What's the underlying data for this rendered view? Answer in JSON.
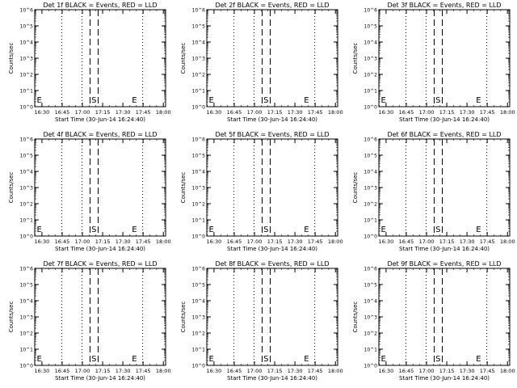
{
  "figure": {
    "background": "#ffffff",
    "foreground": "#000000"
  },
  "chart_data": [
    {
      "type": "line",
      "title": "Det 1f BLACK = Events, RED = LLD",
      "xlabel": "Start Time (30-Jun-14 16:24:40)",
      "ylabel": "Counts/sec",
      "xticks": [
        "16:30",
        "16:45",
        "17:00",
        "17:15",
        "17:30",
        "17:45",
        "18:00"
      ],
      "xlim_minutes": [
        0,
        97
      ],
      "yscale": "log",
      "ylim": [
        1,
        1000000
      ],
      "yticks": [
        "10^0",
        "10^1",
        "10^2",
        "10^3",
        "10^4",
        "10^5",
        "10^6"
      ],
      "dotted_lines_minutes": [
        20,
        35,
        80
      ],
      "dashed_lines_minutes": [
        41,
        47
      ],
      "markers": [
        {
          "text": "E",
          "x_minutes": 1.5
        },
        {
          "text": "S",
          "x_minutes": 42
        },
        {
          "text": "E",
          "x_minutes": 72
        }
      ],
      "series": []
    },
    {
      "type": "line",
      "title": "Det 2f BLACK = Events, RED = LLD",
      "xlabel": "Start Time (30-Jun-14 16:24:40)",
      "ylabel": "Counts/sec",
      "xticks": [
        "16:30",
        "16:45",
        "17:00",
        "17:15",
        "17:30",
        "17:45",
        "18:00"
      ],
      "xlim_minutes": [
        0,
        97
      ],
      "yscale": "log",
      "ylim": [
        1,
        1000000
      ],
      "yticks": [
        "10^0",
        "10^1",
        "10^2",
        "10^3",
        "10^4",
        "10^5",
        "10^6"
      ],
      "dotted_lines_minutes": [
        20,
        35,
        80
      ],
      "dashed_lines_minutes": [
        41,
        47
      ],
      "markers": [
        {
          "text": "E",
          "x_minutes": 1.5
        },
        {
          "text": "S",
          "x_minutes": 42
        },
        {
          "text": "E",
          "x_minutes": 72
        }
      ],
      "series": []
    },
    {
      "type": "line",
      "title": "Det 3f BLACK = Events, RED = LLD",
      "xlabel": "Start Time (30-Jun-14 16:24:40)",
      "ylabel": "Counts/sec",
      "xticks": [
        "16:30",
        "16:45",
        "17:00",
        "17:15",
        "17:30",
        "17:45",
        "18:00"
      ],
      "xlim_minutes": [
        0,
        97
      ],
      "yscale": "log",
      "ylim": [
        1,
        1000000
      ],
      "yticks": [
        "10^0",
        "10^1",
        "10^2",
        "10^3",
        "10^4",
        "10^5",
        "10^6"
      ],
      "dotted_lines_minutes": [
        20,
        35,
        80
      ],
      "dashed_lines_minutes": [
        41,
        47
      ],
      "markers": [
        {
          "text": "E",
          "x_minutes": 1.5
        },
        {
          "text": "S",
          "x_minutes": 42
        },
        {
          "text": "E",
          "x_minutes": 72
        }
      ],
      "series": []
    },
    {
      "type": "line",
      "title": "Det 4f BLACK = Events, RED = LLD",
      "xlabel": "Start Time (30-Jun-14 16:24:40)",
      "ylabel": "Counts/sec",
      "xticks": [
        "16:30",
        "16:45",
        "17:00",
        "17:15",
        "17:30",
        "17:45",
        "18:00"
      ],
      "xlim_minutes": [
        0,
        97
      ],
      "yscale": "log",
      "ylim": [
        1,
        1000000
      ],
      "yticks": [
        "10^0",
        "10^1",
        "10^2",
        "10^3",
        "10^4",
        "10^5",
        "10^6"
      ],
      "dotted_lines_minutes": [
        20,
        35,
        80
      ],
      "dashed_lines_minutes": [
        41,
        47
      ],
      "markers": [
        {
          "text": "E",
          "x_minutes": 1.5
        },
        {
          "text": "S",
          "x_minutes": 42
        },
        {
          "text": "E",
          "x_minutes": 72
        }
      ],
      "series": []
    },
    {
      "type": "line",
      "title": "Det 5f BLACK = Events, RED = LLD",
      "xlabel": "Start Time (30-Jun-14 16:24:40)",
      "ylabel": "Counts/sec",
      "xticks": [
        "16:30",
        "16:45",
        "17:00",
        "17:15",
        "17:30",
        "17:45",
        "18:00"
      ],
      "xlim_minutes": [
        0,
        97
      ],
      "yscale": "log",
      "ylim": [
        1,
        1000000
      ],
      "yticks": [
        "10^0",
        "10^1",
        "10^2",
        "10^3",
        "10^4",
        "10^5",
        "10^6"
      ],
      "dotted_lines_minutes": [
        20,
        35,
        80
      ],
      "dashed_lines_minutes": [
        41,
        47
      ],
      "markers": [
        {
          "text": "E",
          "x_minutes": 1.5
        },
        {
          "text": "S",
          "x_minutes": 42
        },
        {
          "text": "E",
          "x_minutes": 72
        }
      ],
      "series": []
    },
    {
      "type": "line",
      "title": "Det 6f BLACK = Events, RED = LLD",
      "xlabel": "Start Time (30-Jun-14 16:24:40)",
      "ylabel": "Counts/sec",
      "xticks": [
        "16:30",
        "16:45",
        "17:00",
        "17:15",
        "17:30",
        "17:45",
        "18:00"
      ],
      "xlim_minutes": [
        0,
        97
      ],
      "yscale": "log",
      "ylim": [
        1,
        1000000
      ],
      "yticks": [
        "10^0",
        "10^1",
        "10^2",
        "10^3",
        "10^4",
        "10^5",
        "10^6"
      ],
      "dotted_lines_minutes": [
        20,
        35,
        80
      ],
      "dashed_lines_minutes": [
        41,
        47
      ],
      "markers": [
        {
          "text": "E",
          "x_minutes": 1.5
        },
        {
          "text": "S",
          "x_minutes": 42
        },
        {
          "text": "E",
          "x_minutes": 72
        }
      ],
      "series": []
    },
    {
      "type": "line",
      "title": "Det 7f BLACK = Events, RED = LLD",
      "xlabel": "Start Time (30-Jun-14 16:24:40)",
      "ylabel": "Counts/sec",
      "xticks": [
        "16:30",
        "16:45",
        "17:00",
        "17:15",
        "17:30",
        "17:45",
        "18:00"
      ],
      "xlim_minutes": [
        0,
        97
      ],
      "yscale": "log",
      "ylim": [
        1,
        1000000
      ],
      "yticks": [
        "10^0",
        "10^1",
        "10^2",
        "10^3",
        "10^4",
        "10^5",
        "10^6"
      ],
      "dotted_lines_minutes": [
        20,
        35,
        80
      ],
      "dashed_lines_minutes": [
        41,
        47
      ],
      "markers": [
        {
          "text": "E",
          "x_minutes": 1.5
        },
        {
          "text": "S",
          "x_minutes": 42
        },
        {
          "text": "E",
          "x_minutes": 72
        }
      ],
      "series": []
    },
    {
      "type": "line",
      "title": "Det 8f BLACK = Events, RED = LLD",
      "xlabel": "Start Time (30-Jun-14 16:24:40)",
      "ylabel": "Counts/sec",
      "xticks": [
        "16:30",
        "16:45",
        "17:00",
        "17:15",
        "17:30",
        "17:45",
        "18:00"
      ],
      "xlim_minutes": [
        0,
        97
      ],
      "yscale": "log",
      "ylim": [
        1,
        1000000
      ],
      "yticks": [
        "10^0",
        "10^1",
        "10^2",
        "10^3",
        "10^4",
        "10^5",
        "10^6"
      ],
      "dotted_lines_minutes": [
        20,
        35,
        80
      ],
      "dashed_lines_minutes": [
        41,
        47
      ],
      "markers": [
        {
          "text": "E",
          "x_minutes": 1.5
        },
        {
          "text": "S",
          "x_minutes": 42
        },
        {
          "text": "E",
          "x_minutes": 72
        }
      ],
      "series": []
    },
    {
      "type": "line",
      "title": "Det 9f BLACK = Events, RED = LLD",
      "xlabel": "Start Time (30-Jun-14 16:24:40)",
      "ylabel": "Counts/sec",
      "xticks": [
        "16:30",
        "16:45",
        "17:00",
        "17:15",
        "17:30",
        "17:45",
        "18:00"
      ],
      "xlim_minutes": [
        0,
        97
      ],
      "yscale": "log",
      "ylim": [
        1,
        1000000
      ],
      "yticks": [
        "10^0",
        "10^1",
        "10^2",
        "10^3",
        "10^4",
        "10^5",
        "10^6"
      ],
      "dotted_lines_minutes": [
        20,
        35,
        80
      ],
      "dashed_lines_minutes": [
        41,
        47
      ],
      "markers": [
        {
          "text": "E",
          "x_minutes": 1.5
        },
        {
          "text": "S",
          "x_minutes": 42
        },
        {
          "text": "E",
          "x_minutes": 72
        }
      ],
      "series": []
    }
  ]
}
